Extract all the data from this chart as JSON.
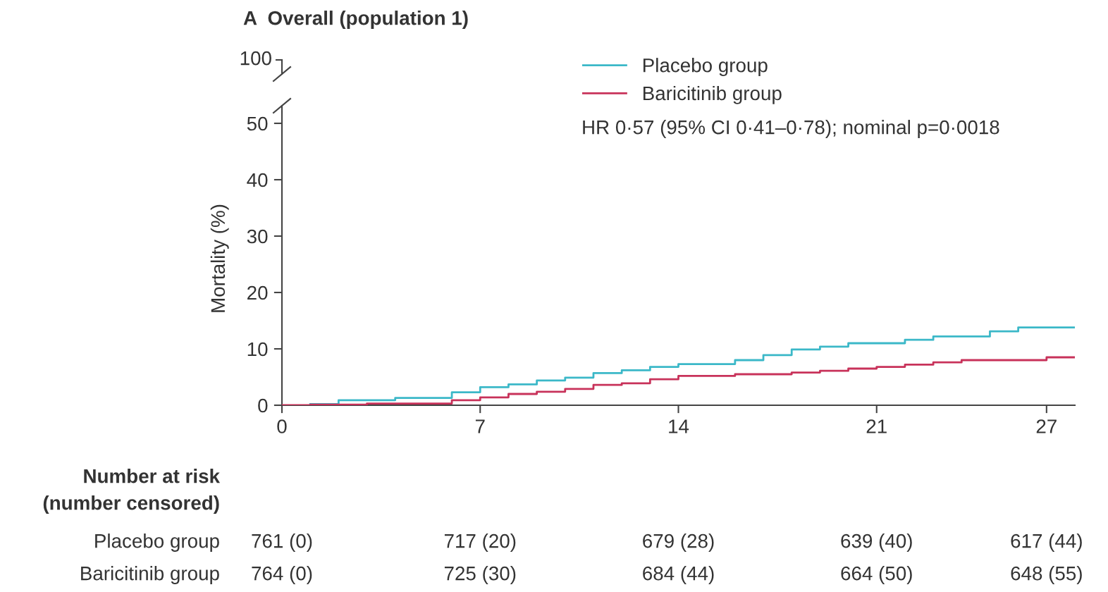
{
  "chart_data": {
    "type": "step",
    "title": "A  Overall (population 1)",
    "ylabel": "Mortality (%)",
    "series": [
      {
        "name": "Placebo group",
        "color": "#3bb8c8",
        "x": [
          1,
          2,
          4,
          6,
          7,
          8,
          9,
          10,
          11,
          12,
          13,
          14,
          16,
          17,
          18,
          19,
          20,
          22,
          23,
          25,
          26,
          28
        ],
        "values": [
          0.2,
          0.9,
          1.3,
          2.3,
          3.2,
          3.7,
          4.4,
          4.9,
          5.7,
          6.2,
          6.8,
          7.3,
          8.0,
          8.9,
          9.9,
          10.4,
          11.0,
          11.6,
          12.2,
          13.1,
          13.8,
          13.8
        ]
      },
      {
        "name": "Baricitinib group",
        "color": "#c8325a",
        "x": [
          0,
          1,
          3,
          6,
          7,
          8,
          9,
          10,
          11,
          12,
          13,
          14,
          16,
          18,
          19,
          20,
          21,
          22,
          23,
          24,
          27,
          28
        ],
        "values": [
          0,
          0.1,
          0.3,
          0.9,
          1.4,
          2.0,
          2.4,
          2.9,
          3.6,
          3.9,
          4.6,
          5.2,
          5.5,
          5.8,
          6.1,
          6.5,
          6.8,
          7.2,
          7.6,
          8.0,
          8.5,
          8.5
        ]
      }
    ],
    "xlim": [
      0,
      28
    ],
    "xticks": [
      0,
      7,
      14,
      21,
      27
    ],
    "ylim": [
      0,
      52
    ],
    "yticks": [
      0,
      10,
      20,
      30,
      40,
      50
    ],
    "legend": "top right",
    "grid": false,
    "marker": "none",
    "line_style": "solid",
    "annotations": [
      "100",
      "HR 0·57 (95% CI 0·41–0·78); nominal p=0·0018",
      "Number at risk\n(number censored)",
      "Placebo group",
      "761 (0)",
      "717 (20)",
      "679 (28)",
      "639 (40)",
      "617 (44)",
      "Baricitinib group",
      "764 (0)",
      "725 (30)",
      "684 (44)",
      "664 (50)",
      "648 (55)"
    ]
  }
}
